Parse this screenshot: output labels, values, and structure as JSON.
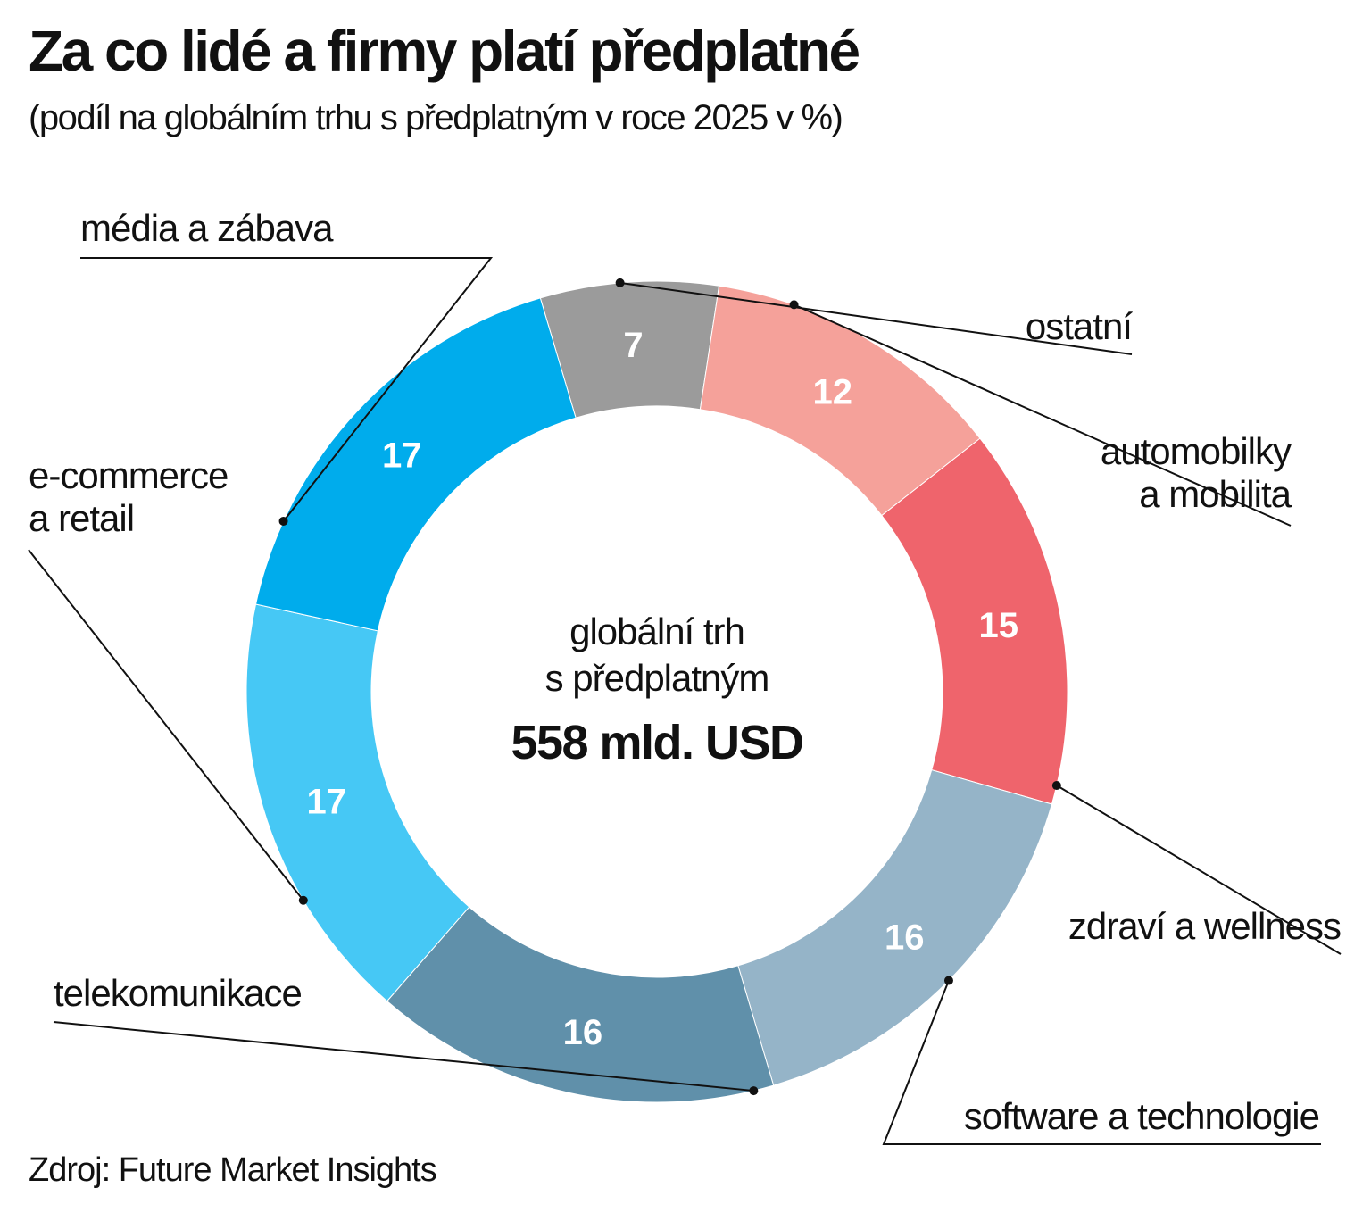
{
  "header": {
    "title": "Za co lidé a firmy platí předplatné",
    "subtitle": "(podíl na globálním trhu s předplatným v roce 2025 v %)"
  },
  "footer": {
    "source": "Zdroj: Future Market Insights"
  },
  "center": {
    "line1": "globální trh",
    "line2": "s předplatným",
    "value": "558 mld. USD"
  },
  "chart_data": {
    "type": "pie",
    "variant": "donut",
    "title": "Za co lidé a firmy platí předplatné",
    "subtitle": "(podíl na globálním trhu s předplatným v roce 2025 v %)",
    "unit": "%",
    "total_label": "558 mld. USD",
    "slices": [
      {
        "label": [
          "ostatní"
        ],
        "value": 7,
        "color": "#9b9b9b"
      },
      {
        "label": [
          "automobilky",
          "a mobilita"
        ],
        "value": 12,
        "color": "#f5a19a"
      },
      {
        "label": [
          "zdraví a wellness"
        ],
        "value": 15,
        "color": "#ef646c"
      },
      {
        "label": [
          "software a technologie"
        ],
        "value": 16,
        "color": "#95b4c8"
      },
      {
        "label": [
          "telekomunikace"
        ],
        "value": 16,
        "color": "#6090aa"
      },
      {
        "label": [
          "e-commerce",
          "a retail"
        ],
        "value": 17,
        "color": "#46c8f5"
      },
      {
        "label": [
          "média a zábava"
        ],
        "value": 17,
        "color": "#00acec"
      }
    ]
  }
}
